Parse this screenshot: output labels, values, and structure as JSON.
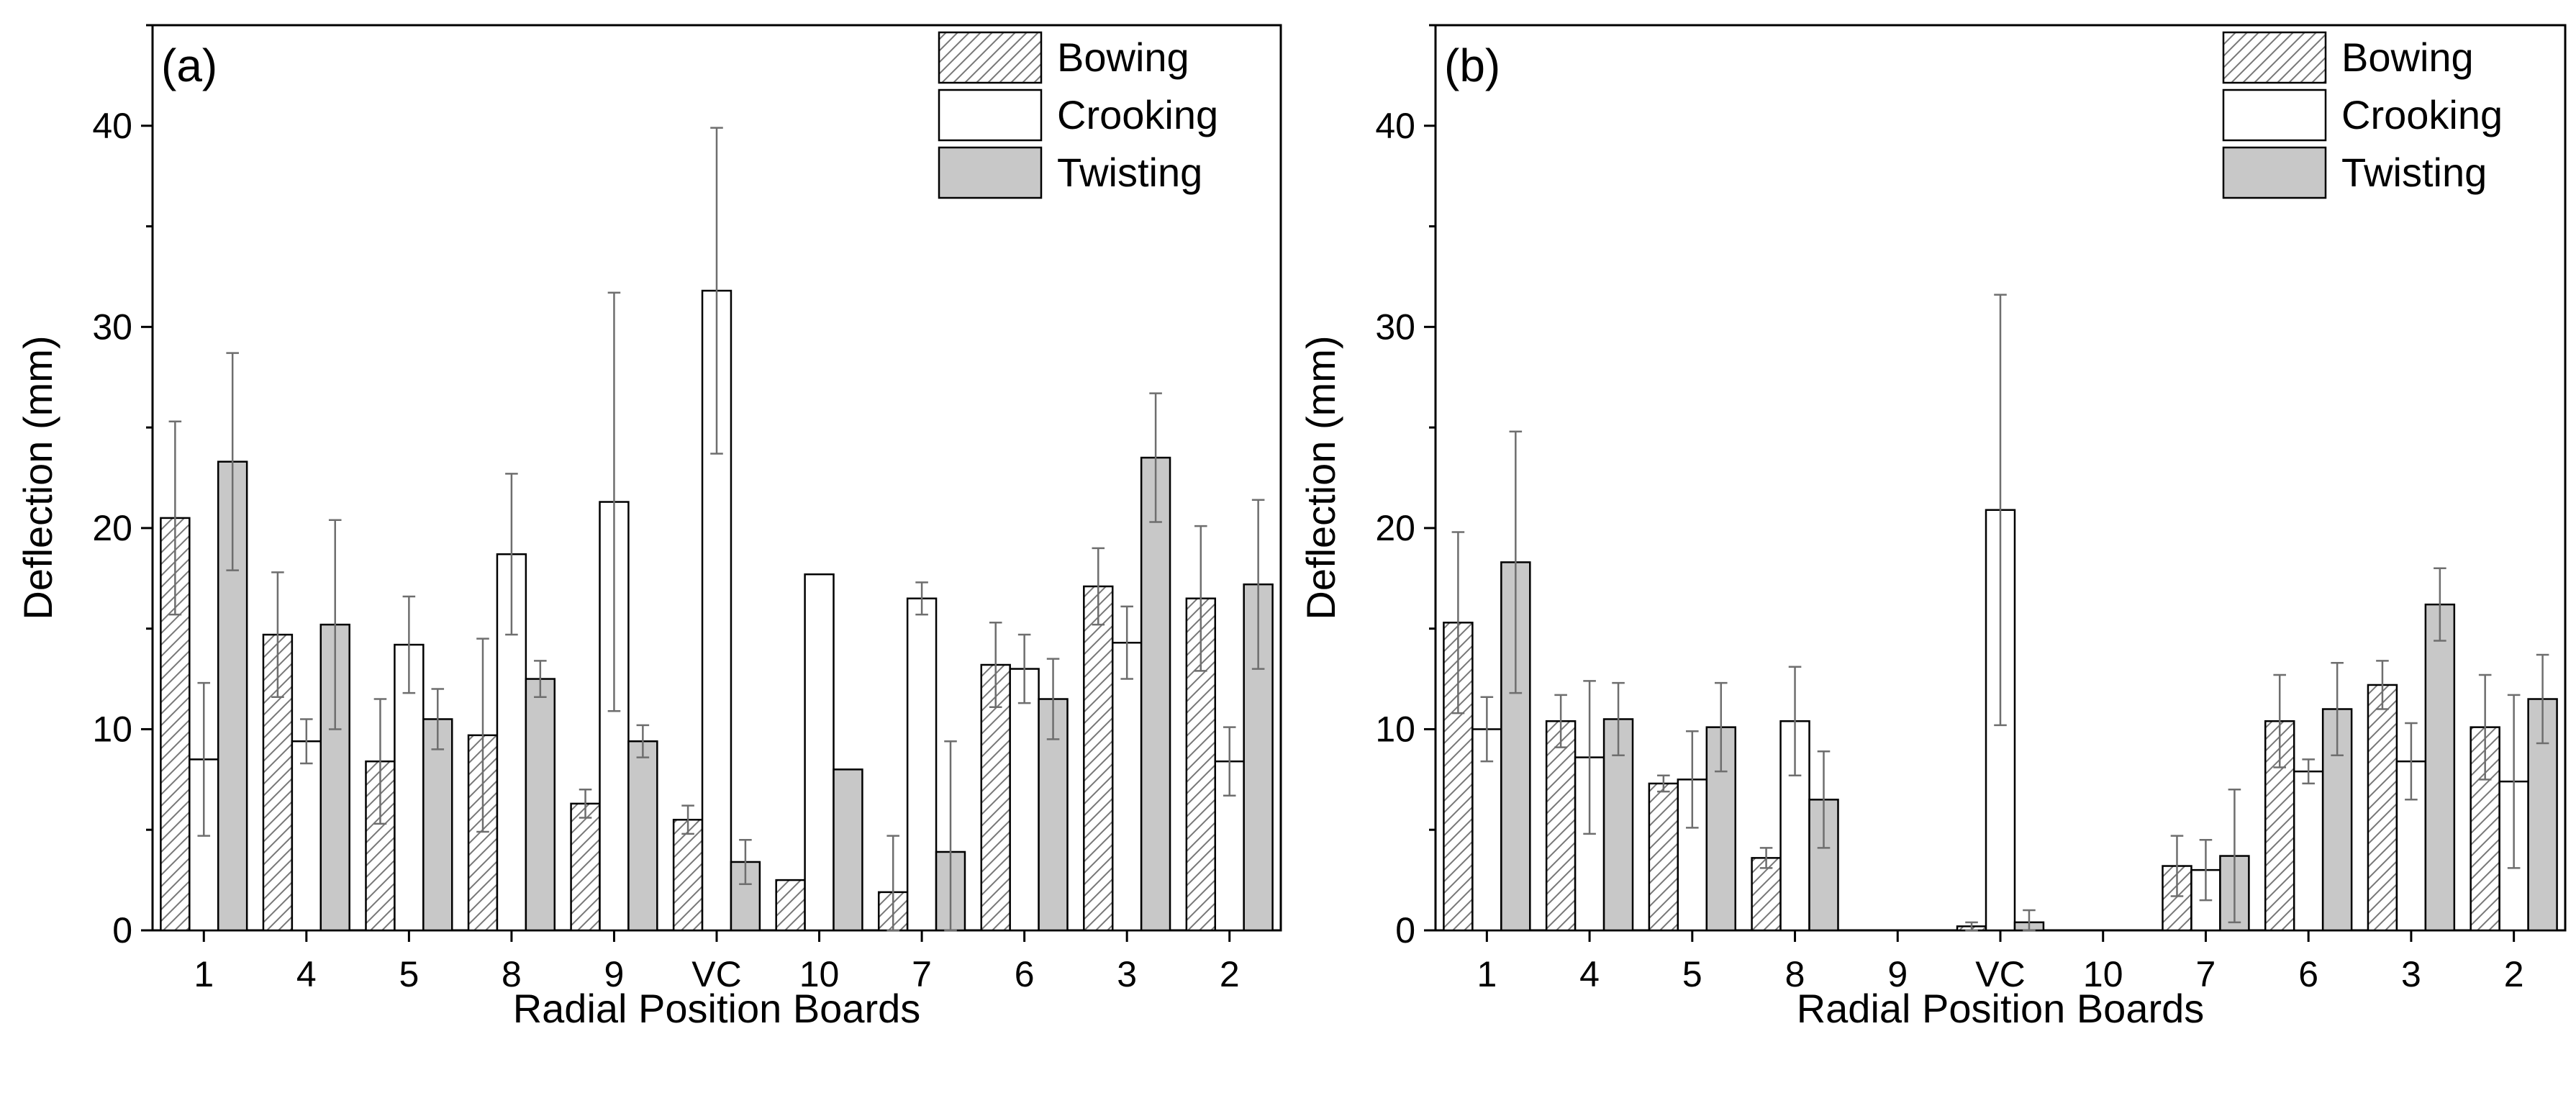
{
  "chart_data": [
    {
      "type": "bar",
      "panel_label": "(a)",
      "xlabel": "Radial Position Boards",
      "ylabel": "Deflection (mm)",
      "ylim": [
        0,
        45
      ],
      "yticks": [
        0,
        10,
        20,
        30,
        40
      ],
      "grid": false,
      "legend_position": "top-right",
      "categories": [
        "1",
        "4",
        "5",
        "8",
        "9",
        "VC",
        "10",
        "7",
        "6",
        "3",
        "2"
      ],
      "series": [
        {
          "name": "Bowing",
          "fill": "hatched",
          "values": [
            20.5,
            14.7,
            8.4,
            9.7,
            6.3,
            5.5,
            2.5,
            1.9,
            13.2,
            17.1,
            16.5
          ],
          "errors": [
            4.8,
            3.1,
            3.1,
            4.8,
            0.7,
            0.7,
            null,
            2.8,
            2.1,
            1.9,
            3.6
          ]
        },
        {
          "name": "Crooking",
          "fill": "white",
          "values": [
            8.5,
            9.4,
            14.2,
            18.7,
            21.3,
            31.8,
            17.7,
            16.5,
            13.0,
            14.3,
            8.4
          ],
          "errors": [
            3.8,
            1.1,
            2.4,
            4.0,
            10.4,
            8.1,
            null,
            0.8,
            1.7,
            1.8,
            1.7
          ]
        },
        {
          "name": "Twisting",
          "fill": "gray",
          "values": [
            23.3,
            15.2,
            10.5,
            12.5,
            9.4,
            3.4,
            8.0,
            3.9,
            11.5,
            23.5,
            17.2
          ],
          "errors": [
            5.4,
            5.2,
            1.5,
            0.9,
            0.8,
            1.1,
            null,
            5.5,
            2.0,
            3.2,
            4.2
          ]
        }
      ]
    },
    {
      "type": "bar",
      "panel_label": "(b)",
      "xlabel": "Radial Position Boards",
      "ylabel": "Deflection (mm)",
      "ylim": [
        0,
        45
      ],
      "yticks": [
        0,
        10,
        20,
        30,
        40
      ],
      "grid": false,
      "legend_position": "top-right",
      "categories": [
        "1",
        "4",
        "5",
        "8",
        "9",
        "VC",
        "10",
        "7",
        "6",
        "3",
        "2"
      ],
      "series": [
        {
          "name": "Bowing",
          "fill": "hatched",
          "values": [
            15.3,
            10.4,
            7.3,
            3.6,
            0,
            0.2,
            0,
            3.2,
            10.4,
            12.2,
            10.1
          ],
          "errors": [
            4.5,
            1.3,
            0.4,
            0.5,
            null,
            0.2,
            null,
            1.5,
            2.3,
            1.2,
            2.6
          ]
        },
        {
          "name": "Crooking",
          "fill": "white",
          "values": [
            10.0,
            8.6,
            7.5,
            10.4,
            0,
            20.9,
            0,
            3.0,
            7.9,
            8.4,
            7.4
          ],
          "errors": [
            1.6,
            3.8,
            2.4,
            2.7,
            null,
            10.7,
            null,
            1.5,
            0.6,
            1.9,
            4.3
          ]
        },
        {
          "name": "Twisting",
          "fill": "gray",
          "values": [
            18.3,
            10.5,
            10.1,
            6.5,
            0,
            0.4,
            0,
            3.7,
            11.0,
            16.2,
            11.5
          ],
          "errors": [
            6.5,
            1.8,
            2.2,
            2.4,
            null,
            0.6,
            null,
            3.3,
            2.3,
            1.8,
            2.2
          ]
        }
      ]
    }
  ]
}
